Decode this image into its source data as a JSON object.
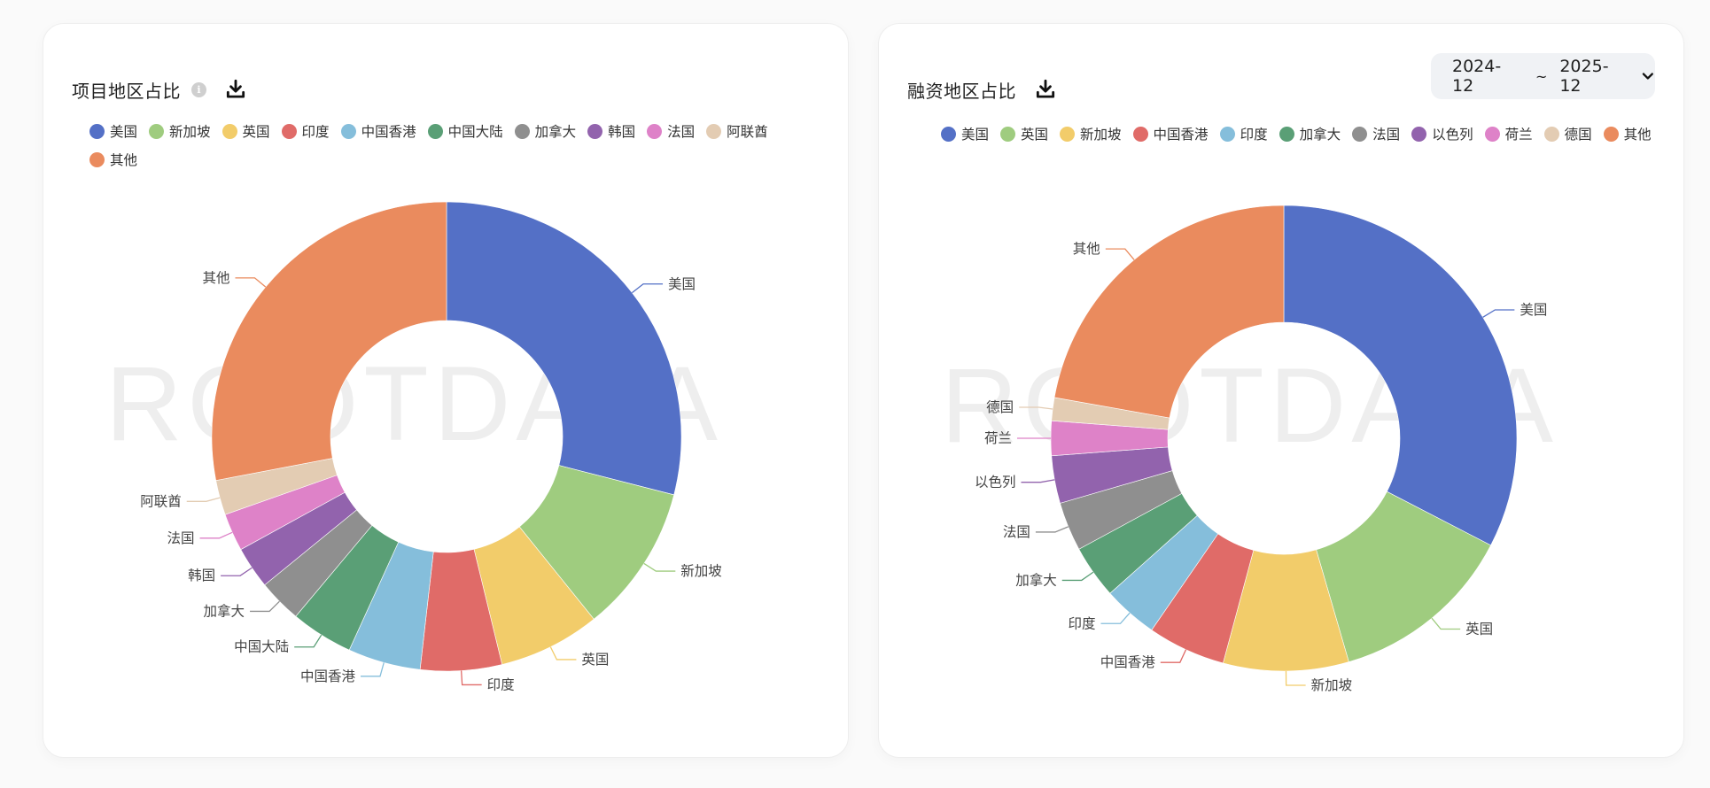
{
  "cards": [
    {
      "id": "left",
      "title": "项目地区占比",
      "has_info_icon": true,
      "download_icon": "download-icon",
      "watermark": "ROOTDATA"
    },
    {
      "id": "right",
      "title": "融资地区占比",
      "has_info_icon": false,
      "download_icon": "download-icon",
      "watermark": "ROOTDATA",
      "date_range": {
        "start": "2024-12",
        "separator": "~",
        "end": "2025-12",
        "icon": "chevron-down-icon"
      }
    }
  ],
  "chart_data": [
    {
      "type": "pie",
      "variant": "donut",
      "title": "项目地区占比",
      "legend_position": "top",
      "categories": [
        "美国",
        "新加坡",
        "英国",
        "印度",
        "中国香港",
        "中国大陆",
        "加拿大",
        "韩国",
        "法国",
        "阿联酋",
        "其他"
      ],
      "values": [
        29.0,
        10.2,
        7.0,
        5.6,
        5.0,
        4.3,
        3.0,
        2.9,
        2.6,
        2.4,
        28.0
      ],
      "unit": "%",
      "colors": [
        "#5470c6",
        "#9fcc7f",
        "#f2cc6a",
        "#e06b68",
        "#85bedb",
        "#5a9f76",
        "#8f8f8f",
        "#9263ad",
        "#de82c8",
        "#e3ccb3",
        "#ea8b5e"
      ]
    },
    {
      "type": "pie",
      "variant": "donut",
      "title": "融资地区占比",
      "legend_position": "top",
      "categories": [
        "美国",
        "英国",
        "新加坡",
        "中国香港",
        "印度",
        "加拿大",
        "法国",
        "以色列",
        "荷兰",
        "德国",
        "其他"
      ],
      "values": [
        32.6,
        12.9,
        8.7,
        5.4,
        3.8,
        3.7,
        3.4,
        3.3,
        2.4,
        1.6,
        22.2
      ],
      "unit": "%",
      "colors": [
        "#5470c6",
        "#9fcc7f",
        "#f2cc6a",
        "#e06b68",
        "#85bedb",
        "#5a9f76",
        "#8f8f8f",
        "#9263ad",
        "#de82c8",
        "#e3ccb3",
        "#ea8b5e"
      ]
    }
  ]
}
